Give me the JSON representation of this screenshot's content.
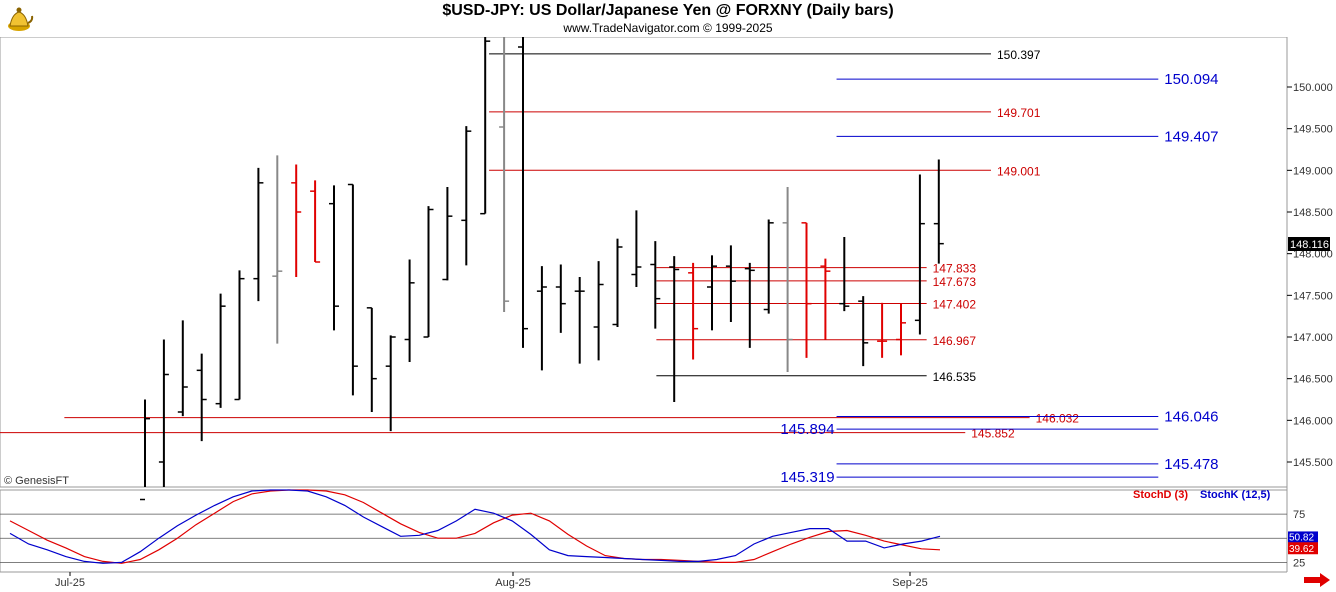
{
  "header": {
    "title": "$USD-JPY:  US Dollar/Japanese Yen @ FORXNY  (Daily bars)",
    "subtitle": "www.TradeNavigator.com © 1999-2025",
    "logo_icon": "genie-lamp-icon"
  },
  "watermark": "© GenesisFT",
  "last_price_label": "148.116",
  "colors": {
    "bar_black": "#000000",
    "bar_red": "#e00000",
    "bar_gray": "#888888",
    "level_blue": "#0000cc",
    "level_red": "#cc0000",
    "stoch_d": "#e00000",
    "stoch_k": "#0000cc"
  },
  "chart_data": [
    {
      "type": "ohlc",
      "title": "$USD-JPY:  US Dollar/Japanese Yen @ FORXNY  (Daily bars)",
      "ylim": [
        145.2,
        150.6
      ],
      "y_ticks": [
        "150.000",
        "149.500",
        "149.000",
        "148.500",
        "148.000",
        "147.500",
        "147.000",
        "146.500",
        "146.000",
        "145.500"
      ],
      "x_labels": [
        "Jul-25",
        "Aug-25",
        "Sep-25"
      ],
      "bars": [
        {
          "o": 145.05,
          "h": 146.25,
          "l": 144.6,
          "c": 146.02,
          "col": "k"
        },
        {
          "o": 145.5,
          "h": 146.97,
          "l": 145.0,
          "c": 146.55,
          "col": "k"
        },
        {
          "o": 146.1,
          "h": 147.2,
          "l": 146.05,
          "c": 146.4,
          "col": "k"
        },
        {
          "o": 146.6,
          "h": 146.8,
          "l": 145.75,
          "c": 146.25,
          "col": "k"
        },
        {
          "o": 146.2,
          "h": 147.52,
          "l": 146.15,
          "c": 147.37,
          "col": "k"
        },
        {
          "o": 146.25,
          "h": 147.8,
          "l": 146.25,
          "c": 147.7,
          "col": "k"
        },
        {
          "o": 147.7,
          "h": 149.03,
          "l": 147.43,
          "c": 148.85,
          "col": "k"
        },
        {
          "o": 147.73,
          "h": 149.18,
          "l": 146.92,
          "c": 147.79,
          "col": "g"
        },
        {
          "o": 148.85,
          "h": 149.07,
          "l": 147.72,
          "c": 148.5,
          "col": "r"
        },
        {
          "o": 148.75,
          "h": 148.88,
          "l": 147.9,
          "c": 147.9,
          "col": "r"
        },
        {
          "o": 148.6,
          "h": 148.82,
          "l": 147.08,
          "c": 147.37,
          "col": "k"
        },
        {
          "o": 148.83,
          "h": 148.83,
          "l": 146.3,
          "c": 146.65,
          "col": "k"
        },
        {
          "o": 147.35,
          "h": 147.35,
          "l": 146.1,
          "c": 146.5,
          "col": "k"
        },
        {
          "o": 146.65,
          "h": 147.02,
          "l": 145.87,
          "c": 147.0,
          "col": "k"
        },
        {
          "o": 146.97,
          "h": 147.93,
          "l": 146.7,
          "c": 147.65,
          "col": "k"
        },
        {
          "o": 147.0,
          "h": 148.57,
          "l": 147.0,
          "c": 148.53,
          "col": "k"
        },
        {
          "o": 147.69,
          "h": 148.8,
          "l": 147.68,
          "c": 148.45,
          "col": "k"
        },
        {
          "o": 148.4,
          "h": 149.53,
          "l": 147.86,
          "c": 149.47,
          "col": "k"
        },
        {
          "o": 148.48,
          "h": 150.7,
          "l": 148.48,
          "c": 150.55,
          "col": "k"
        },
        {
          "o": 149.52,
          "h": 150.92,
          "l": 147.3,
          "c": 147.43,
          "col": "g"
        },
        {
          "o": 150.48,
          "h": 150.9,
          "l": 146.87,
          "c": 147.1,
          "col": "k"
        },
        {
          "o": 147.55,
          "h": 147.85,
          "l": 146.6,
          "c": 147.6,
          "col": "k"
        },
        {
          "o": 147.6,
          "h": 147.87,
          "l": 147.05,
          "c": 147.4,
          "col": "k"
        },
        {
          "o": 147.55,
          "h": 147.72,
          "l": 146.68,
          "c": 147.55,
          "col": "k"
        },
        {
          "o": 147.12,
          "h": 147.91,
          "l": 146.72,
          "c": 147.63,
          "col": "k"
        },
        {
          "o": 147.15,
          "h": 148.18,
          "l": 147.12,
          "c": 148.08,
          "col": "k"
        },
        {
          "o": 147.75,
          "h": 148.52,
          "l": 147.6,
          "c": 147.84,
          "col": "k"
        },
        {
          "o": 147.87,
          "h": 148.15,
          "l": 147.1,
          "c": 147.46,
          "col": "k"
        },
        {
          "o": 147.84,
          "h": 147.97,
          "l": 146.22,
          "c": 147.81,
          "col": "k"
        },
        {
          "o": 147.77,
          "h": 147.89,
          "l": 146.73,
          "c": 147.1,
          "col": "r"
        },
        {
          "o": 147.6,
          "h": 147.98,
          "l": 147.08,
          "c": 147.85,
          "col": "k"
        },
        {
          "o": 147.85,
          "h": 148.1,
          "l": 147.18,
          "c": 147.67,
          "col": "k"
        },
        {
          "o": 147.82,
          "h": 147.89,
          "l": 146.87,
          "c": 147.8,
          "col": "k"
        },
        {
          "o": 147.33,
          "h": 148.41,
          "l": 147.28,
          "c": 148.37,
          "col": "k"
        },
        {
          "o": 148.37,
          "h": 148.8,
          "l": 146.58,
          "c": 146.97,
          "col": "g"
        },
        {
          "o": 148.37,
          "h": 148.37,
          "l": 146.75,
          "c": 147.4,
          "col": "r"
        },
        {
          "o": 147.85,
          "h": 147.94,
          "l": 146.97,
          "c": 147.79,
          "col": "r"
        },
        {
          "o": 147.4,
          "h": 148.2,
          "l": 147.31,
          "c": 147.37,
          "col": "k"
        },
        {
          "o": 147.43,
          "h": 147.49,
          "l": 146.65,
          "c": 146.93,
          "col": "k"
        },
        {
          "o": 146.95,
          "h": 147.41,
          "l": 146.75,
          "c": 146.95,
          "col": "r"
        },
        {
          "o": 146.97,
          "h": 147.4,
          "l": 146.78,
          "c": 147.17,
          "col": "r"
        },
        {
          "o": 147.2,
          "h": 148.95,
          "l": 147.03,
          "c": 148.36,
          "col": "k"
        },
        {
          "o": 148.36,
          "h": 149.13,
          "l": 147.88,
          "c": 148.12,
          "col": "k"
        }
      ],
      "levels": [
        {
          "value": 150.397,
          "label": "150.397",
          "color": "#000000",
          "from": 0.38,
          "to": 0.77
        },
        {
          "value": 149.701,
          "label": "149.701",
          "color": "#cc0000",
          "from": 0.38,
          "to": 0.77
        },
        {
          "value": 149.001,
          "label": "149.001",
          "color": "#cc0000",
          "from": 0.38,
          "to": 0.77
        },
        {
          "value": 147.833,
          "label": "147.833",
          "color": "#cc0000",
          "from": 0.51,
          "to": 0.72
        },
        {
          "value": 147.673,
          "label": "147.673",
          "color": "#cc0000",
          "from": 0.51,
          "to": 0.72
        },
        {
          "value": 147.402,
          "label": "147.402",
          "color": "#cc0000",
          "from": 0.51,
          "to": 0.72
        },
        {
          "value": 146.967,
          "label": "146.967",
          "color": "#cc0000",
          "from": 0.51,
          "to": 0.72
        },
        {
          "value": 146.535,
          "label": "146.535",
          "color": "#000000",
          "from": 0.51,
          "to": 0.72
        },
        {
          "value": 146.032,
          "label": "146.032",
          "color": "#cc0000",
          "from": 0.05,
          "to": 0.8
        },
        {
          "value": 145.852,
          "label": "145.852",
          "color": "#cc0000",
          "from": 0.0,
          "to": 0.75
        },
        {
          "value": 150.094,
          "label": "150.094",
          "color": "#0000cc",
          "from": 0.65,
          "to": 0.9,
          "big": true
        },
        {
          "value": 149.407,
          "label": "149.407",
          "color": "#0000cc",
          "from": 0.65,
          "to": 0.9,
          "big": true
        },
        {
          "value": 146.046,
          "label": "146.046",
          "color": "#0000cc",
          "from": 0.65,
          "to": 0.9,
          "big": true
        },
        {
          "value": 145.894,
          "label": "145.894",
          "color": "#0000cc",
          "from": 0.65,
          "to": 0.9,
          "big": true,
          "labelLeft": true
        },
        {
          "value": 145.478,
          "label": "145.478",
          "color": "#0000cc",
          "from": 0.65,
          "to": 0.9,
          "big": true
        },
        {
          "value": 145.319,
          "label": "145.319",
          "color": "#0000cc",
          "from": 0.65,
          "to": 0.9,
          "big": true,
          "labelLeft": true
        }
      ]
    },
    {
      "type": "line",
      "title": "Stochastic",
      "ylim": [
        15,
        100
      ],
      "y_ticks": [
        "75",
        "50",
        "25"
      ],
      "series": [
        {
          "name": "StochD (3)",
          "color": "#e00000",
          "values": [
            68,
            58,
            48,
            40,
            31,
            26,
            24,
            28,
            38,
            50,
            64,
            76,
            88,
            96,
            99,
            100,
            100,
            99,
            95,
            87,
            76,
            65,
            56,
            50,
            50,
            55,
            66,
            74,
            76,
            68,
            54,
            42,
            32,
            29,
            28,
            28,
            27,
            26,
            25,
            25,
            28,
            36,
            44,
            51,
            57,
            58,
            53,
            47,
            43,
            39,
            38
          ]
        },
        {
          "name": "StochK (12,5)",
          "color": "#0000cc",
          "values": [
            55,
            44,
            38,
            31,
            26,
            24,
            25,
            36,
            50,
            63,
            74,
            84,
            93,
            99,
            100,
            100,
            99,
            93,
            84,
            72,
            62,
            52,
            53,
            58,
            68,
            80,
            76,
            68,
            54,
            38,
            32,
            31,
            30,
            29,
            28,
            27,
            26,
            26,
            28,
            32,
            44,
            52,
            56,
            60,
            60,
            47,
            47,
            40,
            44,
            47,
            52
          ]
        }
      ],
      "last_values": [
        "50.82",
        "39.62"
      ]
    }
  ]
}
